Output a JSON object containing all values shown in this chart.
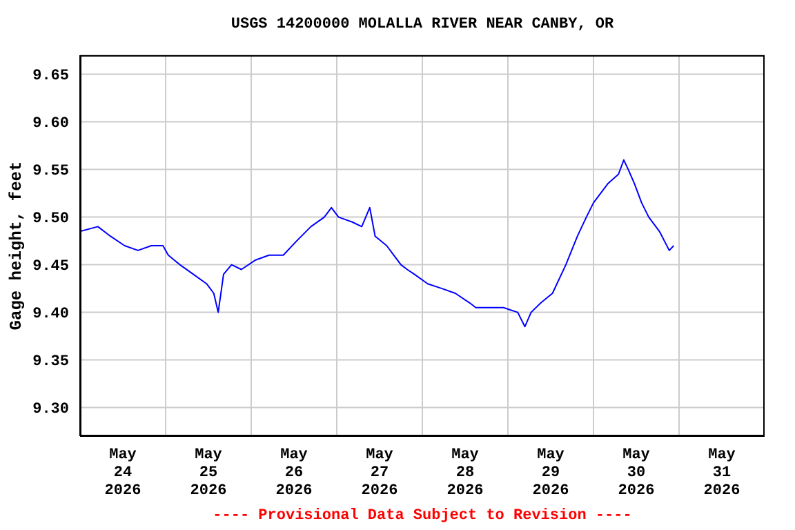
{
  "chart_data": {
    "type": "line",
    "title": "USGS 14200000 MOLALLA RIVER NEAR CANBY, OR",
    "ylabel": "Gage height, feet",
    "annotations": [
      "---- Provisional Data Subject to Revision ----"
    ],
    "x": [
      "2026-05-24T00:00",
      "2026-05-24T05:00",
      "2026-05-24T08:30",
      "2026-05-24T12:30",
      "2026-05-24T16:15",
      "2026-05-24T20:00",
      "2026-05-24T23:15",
      "2026-05-25T00:45",
      "2026-05-25T04:00",
      "2026-05-25T07:45",
      "2026-05-25T11:30",
      "2026-05-25T13:30",
      "2026-05-25T14:45",
      "2026-05-25T16:15",
      "2026-05-25T18:30",
      "2026-05-25T21:15",
      "2026-05-26T01:15",
      "2026-05-26T05:00",
      "2026-05-26T09:00",
      "2026-05-26T12:45",
      "2026-05-26T16:45",
      "2026-05-26T20:30",
      "2026-05-26T22:30",
      "2026-05-27T00:30",
      "2026-05-27T04:15",
      "2026-05-27T07:00",
      "2026-05-27T09:15",
      "2026-05-27T10:45",
      "2026-05-27T14:00",
      "2026-05-27T16:00",
      "2026-05-27T18:00",
      "2026-05-27T19:45",
      "2026-05-27T21:45",
      "2026-05-28T01:30",
      "2026-05-28T05:30",
      "2026-05-28T09:15",
      "2026-05-28T13:15",
      "2026-05-28T15:00",
      "2026-05-28T19:00",
      "2026-05-28T22:45",
      "2026-05-29T02:45",
      "2026-05-29T04:45",
      "2026-05-29T06:30",
      "2026-05-29T09:15",
      "2026-05-29T12:30",
      "2026-05-29T16:15",
      "2026-05-29T19:30",
      "2026-05-29T22:00",
      "2026-05-30T00:00",
      "2026-05-30T04:00",
      "2026-05-30T07:00",
      "2026-05-30T08:30",
      "2026-05-30T09:45",
      "2026-05-30T11:30",
      "2026-05-30T13:30",
      "2026-05-30T15:30",
      "2026-05-30T18:30",
      "2026-05-30T21:15",
      "2026-05-30T22:30"
    ],
    "series": [
      {
        "color": "#0000ff",
        "values": [
          9.485,
          9.49,
          9.48,
          9.47,
          9.465,
          9.47,
          9.47,
          9.46,
          9.45,
          9.44,
          9.43,
          9.42,
          9.4,
          9.44,
          9.45,
          9.445,
          9.455,
          9.46,
          9.46,
          9.475,
          9.49,
          9.5,
          9.51,
          9.5,
          9.495,
          9.49,
          9.51,
          9.48,
          9.47,
          9.46,
          9.45,
          9.445,
          9.44,
          9.43,
          9.425,
          9.42,
          9.41,
          9.405,
          9.405,
          9.405,
          9.4,
          9.385,
          9.4,
          9.41,
          9.42,
          9.45,
          9.48,
          9.5,
          9.515,
          9.535,
          9.545,
          9.56,
          9.55,
          9.535,
          9.515,
          9.5,
          9.485,
          9.465,
          9.47
        ]
      }
    ],
    "xlim": [
      "2026-05-24T00:00",
      "2026-06-01T00:00"
    ],
    "xticks": [
      {
        "value": "2026-05-24T12:00",
        "label": "May\n24\n2026"
      },
      {
        "value": "2026-05-25T00:00",
        "label": null
      },
      {
        "value": "2026-05-25T12:00",
        "label": "May\n25\n2026"
      },
      {
        "value": "2026-05-26T00:00",
        "label": null
      },
      {
        "value": "2026-05-26T12:00",
        "label": "May\n26\n2026"
      },
      {
        "value": "2026-05-27T00:00",
        "label": null
      },
      {
        "value": "2026-05-27T12:00",
        "label": "May\n27\n2026"
      },
      {
        "value": "2026-05-28T00:00",
        "label": null
      },
      {
        "value": "2026-05-28T12:00",
        "label": "May\n28\n2026"
      },
      {
        "value": "2026-05-29T00:00",
        "label": null
      },
      {
        "value": "2026-05-29T12:00",
        "label": "May\n29\n2026"
      },
      {
        "value": "2026-05-30T00:00",
        "label": null
      },
      {
        "value": "2026-05-30T12:00",
        "label": "May\n30\n2026"
      },
      {
        "value": "2026-05-31T00:00",
        "label": null
      },
      {
        "value": "2026-05-31T12:00",
        "label": "May\n31\n2026"
      }
    ],
    "ylim": [
      9.27,
      9.67
    ],
    "yticks": [
      {
        "value": 9.3,
        "label": "9.30"
      },
      9.35,
      {
        "value": 9.4,
        "label": "9.40"
      },
      9.45,
      {
        "value": 9.5,
        "label": "9.50"
      },
      9.55,
      {
        "value": 9.6,
        "label": "9.60"
      },
      9.65
    ],
    "grid": true,
    "marker": "none",
    "line_style": "solid"
  }
}
